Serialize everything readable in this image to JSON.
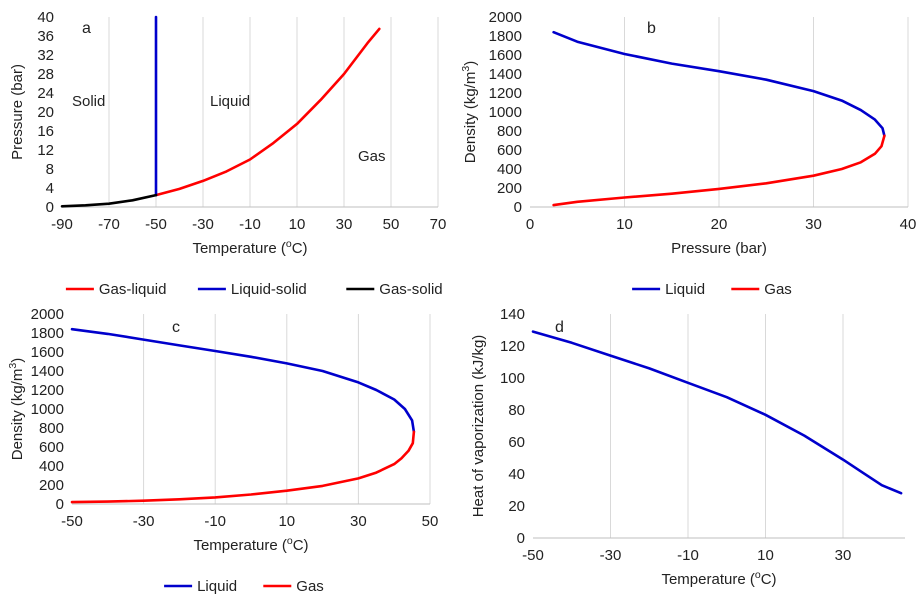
{
  "chart_data": [
    {
      "panel": "a",
      "type": "line",
      "xlabel": "Temperature (oC)",
      "ylabel": "Pressure (bar)",
      "xlim": [
        -90,
        70
      ],
      "xticks": [
        -90,
        -70,
        -50,
        -30,
        -10,
        10,
        30,
        50,
        70
      ],
      "ylim": [
        0,
        40
      ],
      "yticks": [
        0,
        4,
        8,
        12,
        16,
        20,
        24,
        28,
        32,
        36,
        40
      ],
      "grid": "vertical",
      "legend_position": "bottom",
      "annotations": [
        "Solid",
        "Liquid",
        "Gas"
      ],
      "series": [
        {
          "name": "Gas-liquid",
          "color": "#ff0000",
          "x": [
            -50,
            -40,
            -30,
            -20,
            -10,
            0,
            10,
            20,
            30,
            40,
            45
          ],
          "y": [
            2.5,
            3.8,
            5.5,
            7.5,
            10.0,
            13.5,
            17.5,
            22.5,
            28.0,
            34.5,
            37.5
          ]
        },
        {
          "name": "Liquid-solid",
          "color": "#0000cc",
          "x": [
            -50,
            -50
          ],
          "y": [
            2.5,
            40
          ]
        },
        {
          "name": "Gas-solid",
          "color": "#000000",
          "x": [
            -90,
            -80,
            -70,
            -60,
            -50
          ],
          "y": [
            0.15,
            0.35,
            0.7,
            1.4,
            2.5
          ]
        }
      ]
    },
    {
      "panel": "b",
      "type": "line",
      "xlabel": "Pressure (bar)",
      "ylabel": "Density (kg/m3)",
      "xlim": [
        0,
        40
      ],
      "xticks": [
        0,
        10,
        20,
        30,
        40
      ],
      "ylim": [
        0,
        2000
      ],
      "yticks": [
        0,
        200,
        400,
        600,
        800,
        1000,
        1200,
        1400,
        1600,
        1800,
        2000
      ],
      "grid": "vertical",
      "legend_position": "bottom",
      "series": [
        {
          "name": "Liquid",
          "color": "#0000cc",
          "x": [
            2.5,
            5,
            10,
            15,
            20,
            25,
            30,
            33,
            35,
            36.5,
            37.3,
            37.5
          ],
          "y": [
            1840,
            1740,
            1610,
            1510,
            1430,
            1340,
            1220,
            1120,
            1020,
            920,
            830,
            750
          ]
        },
        {
          "name": "Gas",
          "color": "#ff0000",
          "x": [
            37.5,
            37.2,
            36.5,
            35,
            33,
            30,
            25,
            20,
            15,
            10,
            5,
            2.5
          ],
          "y": [
            750,
            640,
            560,
            470,
            400,
            330,
            250,
            190,
            140,
            100,
            55,
            20
          ]
        }
      ]
    },
    {
      "panel": "c",
      "type": "line",
      "xlabel": "Temperature (oC)",
      "ylabel": "Density (kg/m3)",
      "xlim": [
        -50,
        50
      ],
      "xticks": [
        -50,
        -30,
        -10,
        10,
        30,
        50
      ],
      "ylim": [
        0,
        2000
      ],
      "yticks": [
        0,
        200,
        400,
        600,
        800,
        1000,
        1200,
        1400,
        1600,
        1800,
        2000
      ],
      "grid": "vertical",
      "legend_position": "bottom",
      "series": [
        {
          "name": "Liquid",
          "color": "#0000cc",
          "x": [
            -50,
            -40,
            -30,
            -20,
            -10,
            0,
            10,
            20,
            30,
            35,
            40,
            43,
            45,
            45.5
          ],
          "y": [
            1840,
            1790,
            1730,
            1670,
            1610,
            1550,
            1480,
            1400,
            1280,
            1200,
            1100,
            1000,
            880,
            760
          ]
        },
        {
          "name": "Gas",
          "color": "#ff0000",
          "x": [
            45.5,
            45.2,
            44,
            42,
            40,
            35,
            30,
            20,
            10,
            0,
            -10,
            -20,
            -30,
            -40,
            -50
          ],
          "y": [
            760,
            640,
            560,
            480,
            420,
            330,
            270,
            190,
            140,
            100,
            70,
            50,
            35,
            25,
            20
          ]
        }
      ]
    },
    {
      "panel": "d",
      "type": "line",
      "xlabel": "Temperature (oC)",
      "ylabel": "Heat of vaporization  (kJ/kg)",
      "xlim": [
        -50,
        46
      ],
      "xticks": [
        -50,
        -30,
        -10,
        10,
        30
      ],
      "ylim": [
        0,
        140
      ],
      "yticks": [
        0,
        20,
        40,
        60,
        80,
        100,
        120,
        140
      ],
      "grid": "vertical",
      "series": [
        {
          "name": "Heat of vaporization",
          "color": "#0000cc",
          "x": [
            -50,
            -40,
            -30,
            -20,
            -10,
            0,
            10,
            20,
            30,
            35,
            40,
            45
          ],
          "y": [
            129,
            122,
            114,
            106,
            97,
            88,
            77,
            64,
            49,
            41,
            33,
            28
          ]
        }
      ]
    }
  ]
}
